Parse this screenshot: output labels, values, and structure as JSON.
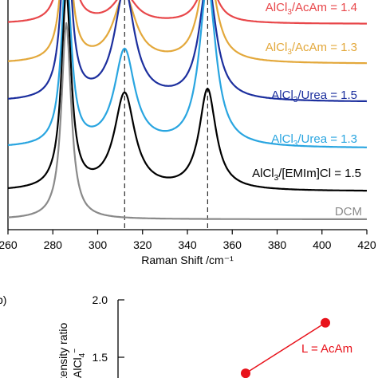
{
  "chart_data": [
    {
      "type": "line",
      "panel_label": "",
      "xlabel": "Raman Shift /cm⁻¹",
      "ylabel": "",
      "xlim": [
        260,
        420
      ],
      "x_ticks": [
        "260",
        "280",
        "300",
        "320",
        "340",
        "360",
        "380",
        "400",
        "420"
      ],
      "reference_lines_x": [
        312,
        349
      ],
      "series": [
        {
          "name": "AlCl3/AcAm = 1.4",
          "label_base": "AlCl",
          "label_sub": "3",
          "label_rest": "/AcAm = 1.4",
          "color": "#e8474a",
          "peaks": [
            {
              "x": 286,
              "height": 0.6,
              "width": 2.6
            },
            {
              "x": 312,
              "height": 0.12,
              "width": 6
            },
            {
              "x": 349,
              "height": 0.2,
              "width": 4.5
            }
          ]
        },
        {
          "name": "AlCl3/AcAm = 1.3",
          "label_base": "AlCl",
          "label_sub": "3",
          "label_rest": "/AcAm = 1.3",
          "color": "#e3a83b",
          "peaks": [
            {
              "x": 286,
              "height": 0.62,
              "width": 2.6
            },
            {
              "x": 312,
              "height": 0.28,
              "width": 6
            },
            {
              "x": 349,
              "height": 0.42,
              "width": 4.5
            }
          ]
        },
        {
          "name": "AlCl3/Urea = 1.5",
          "label_base": "AlCl",
          "label_sub": "3",
          "label_rest": "/Urea = 1.5",
          "color": "#1c2f9e",
          "peaks": [
            {
              "x": 286,
              "height": 0.76,
              "width": 2.6
            },
            {
              "x": 312,
              "height": 0.46,
              "width": 5.5
            },
            {
              "x": 349,
              "height": 0.5,
              "width": 4.5
            }
          ]
        },
        {
          "name": "AlCl3/Urea = 1.3",
          "label_base": "AlCl",
          "label_sub": "3",
          "label_rest": "/Urea = 1.3",
          "color": "#29a5e0",
          "peaks": [
            {
              "x": 286,
              "height": 0.74,
              "width": 2.6
            },
            {
              "x": 312,
              "height": 0.4,
              "width": 5.5
            },
            {
              "x": 349,
              "height": 0.68,
              "width": 4.5
            }
          ]
        },
        {
          "name": "AlCl3/[EMIm]Cl = 1.5",
          "label_base": "AlCl",
          "label_sub": "3",
          "label_rest": "/[EMIm]Cl = 1.5",
          "color": "#000000",
          "peaks": [
            {
              "x": 286,
              "height": 0.82,
              "width": 2.6
            },
            {
              "x": 312,
              "height": 0.4,
              "width": 5.5
            },
            {
              "x": 349,
              "height": 0.42,
              "width": 4.5
            }
          ]
        },
        {
          "name": "DCM",
          "label_base": "DCM",
          "label_sub": "",
          "label_rest": "",
          "color": "#8a8a8a",
          "peaks": [
            {
              "x": 286,
              "height": 0.82,
              "width": 2.6
            }
          ]
        }
      ]
    },
    {
      "type": "scatter",
      "panel_label": "b)",
      "ylabel_line1": "Intensity ratio",
      "ylabel_line2_base": "AlCl",
      "ylabel_line2_sub": "4",
      "ylabel_line2_sup": "−",
      "ylim_visible": [
        1.3,
        2.0
      ],
      "y_ticks": [
        "2.0",
        "1.5"
      ],
      "points": [
        {
          "y": 1.8
        },
        {
          "y": 1.36
        }
      ],
      "annotation": "L = AcAm",
      "color": "#e8121b"
    }
  ]
}
